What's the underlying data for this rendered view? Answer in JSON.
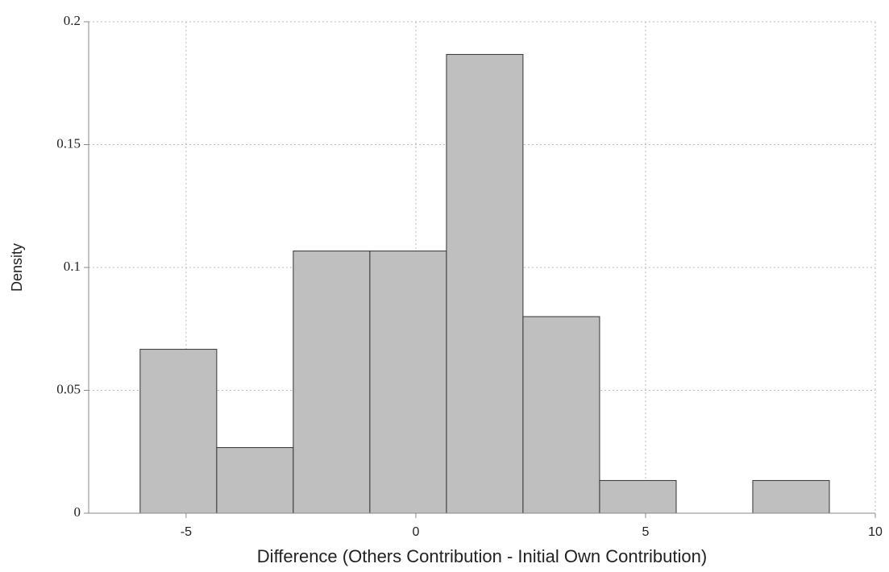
{
  "chart_data": {
    "type": "histogram",
    "x_label": "Difference (Others Contribution - Initial Own Contribution)",
    "y_label": "Density",
    "bins": [
      -6,
      -4.333,
      -2.667,
      -1,
      0.667,
      2.333,
      4,
      5.667,
      7.333,
      9
    ],
    "values": [
      0.0667,
      0.0267,
      0.1067,
      0.1067,
      0.1867,
      0.08,
      0.0133,
      0,
      0.0133
    ],
    "color": "#bfbfbf",
    "xlim": [
      -7.12,
      10
    ],
    "xticks": [
      -5,
      0,
      5,
      10
    ],
    "ylim": [
      0,
      0.2
    ],
    "yticks": [
      0,
      0.05,
      0.1,
      0.15,
      0.2
    ],
    "grid": true
  }
}
